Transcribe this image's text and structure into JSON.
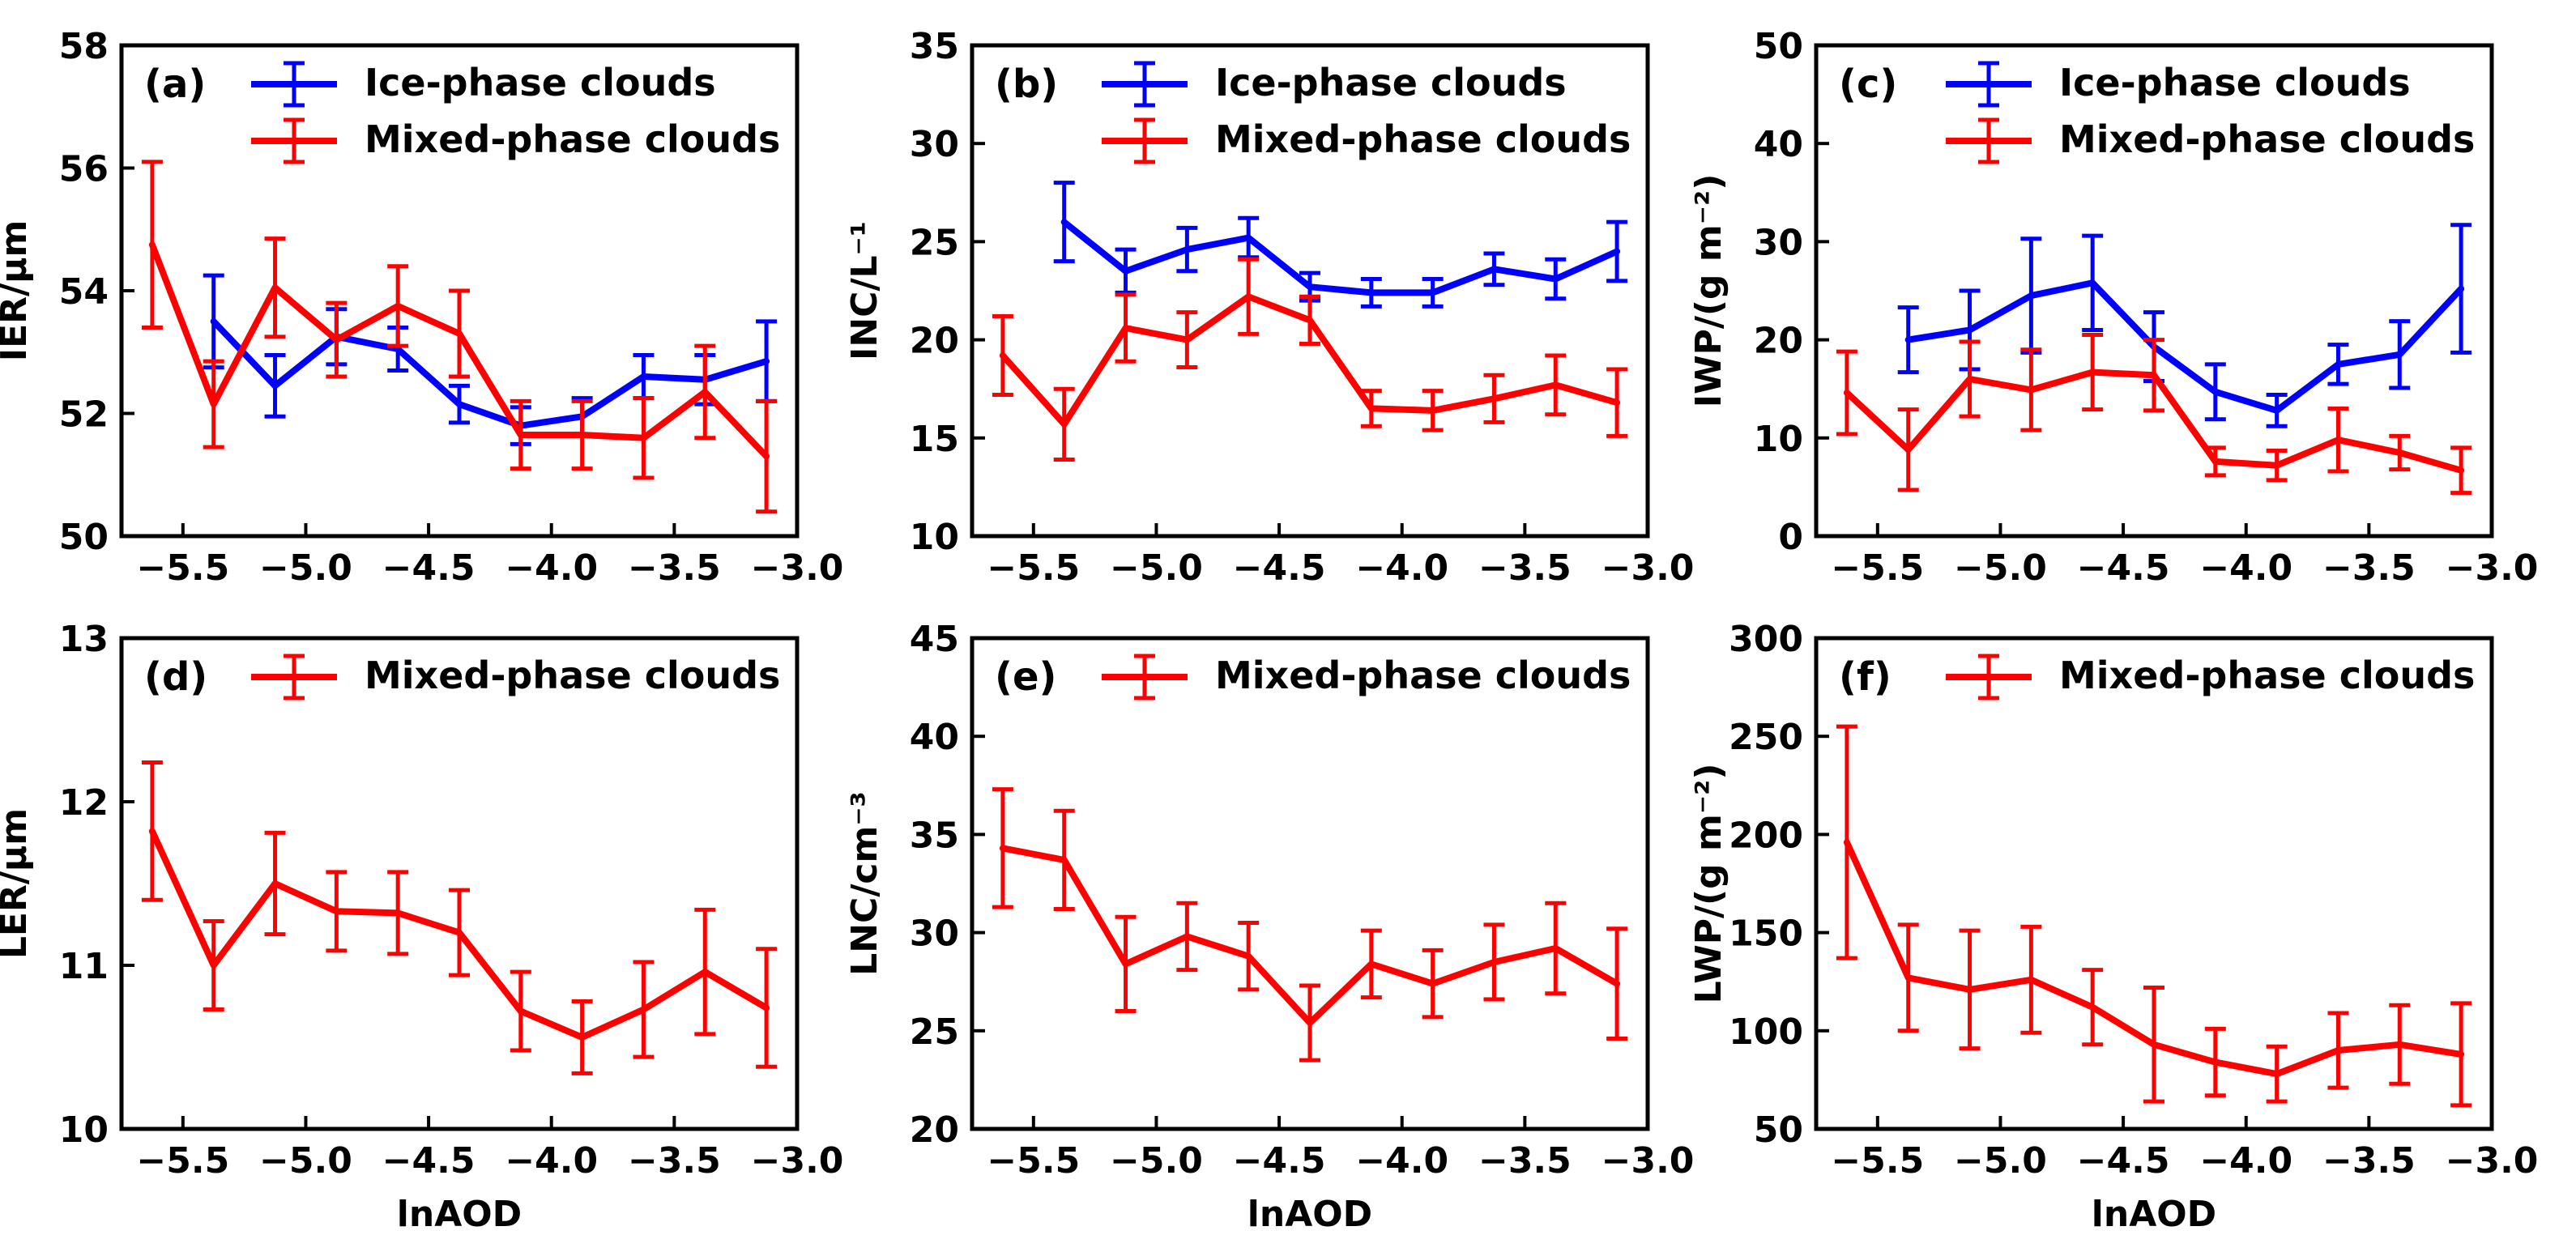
{
  "chart_data": [
    {
      "type": "line",
      "panel_label": "(a)",
      "xlabel": "",
      "ylabel": "IER/μm",
      "xlim": [
        -5.75,
        -3.0
      ],
      "ylim": [
        50,
        58
      ],
      "xticks": [
        -5.5,
        -5.0,
        -4.5,
        -4.0,
        -3.5,
        -3.0
      ],
      "xtick_labels": [
        "−5.5",
        "−5.0",
        "−4.5",
        "−4.0",
        "−3.5",
        "−3.0"
      ],
      "yticks": [
        50,
        52,
        54,
        56,
        58
      ],
      "ytick_labels": [
        "50",
        "52",
        "54",
        "56",
        "58"
      ],
      "legend_position": "top-left",
      "series": [
        {
          "name": "Ice-phase clouds",
          "color": "#0000ff",
          "x": [
            -5.375,
            -5.125,
            -4.875,
            -4.625,
            -4.375,
            -4.125,
            -3.875,
            -3.625,
            -3.375,
            -3.125
          ],
          "y": [
            53.5,
            52.45,
            53.25,
            53.05,
            52.15,
            51.8,
            51.95,
            52.6,
            52.55,
            52.85
          ],
          "err": [
            0.75,
            0.5,
            0.45,
            0.35,
            0.3,
            0.3,
            0.3,
            0.35,
            0.4,
            0.65
          ]
        },
        {
          "name": "Mixed-phase clouds",
          "color": "#ff0000",
          "x": [
            -5.625,
            -5.375,
            -5.125,
            -4.875,
            -4.625,
            -4.375,
            -4.125,
            -3.875,
            -3.625,
            -3.375,
            -3.125
          ],
          "y": [
            54.75,
            52.15,
            54.05,
            53.2,
            53.75,
            53.3,
            51.65,
            51.65,
            51.6,
            52.35,
            51.3
          ],
          "err": [
            1.35,
            0.7,
            0.8,
            0.6,
            0.65,
            0.7,
            0.55,
            0.55,
            0.65,
            0.75,
            0.9
          ]
        }
      ]
    },
    {
      "type": "line",
      "panel_label": "(b)",
      "xlabel": "",
      "ylabel": "INC/L⁻¹",
      "xlim": [
        -5.75,
        -3.0
      ],
      "ylim": [
        10,
        35
      ],
      "xticks": [
        -5.5,
        -5.0,
        -4.5,
        -4.0,
        -3.5,
        -3.0
      ],
      "xtick_labels": [
        "−5.5",
        "−5.0",
        "−4.5",
        "−4.0",
        "−3.5",
        "−3.0"
      ],
      "yticks": [
        10,
        15,
        20,
        25,
        30,
        35
      ],
      "ytick_labels": [
        "10",
        "15",
        "20",
        "25",
        "30",
        "35"
      ],
      "legend_position": "top-left",
      "series": [
        {
          "name": "Ice-phase clouds",
          "color": "#0000ff",
          "x": [
            -5.375,
            -5.125,
            -4.875,
            -4.625,
            -4.375,
            -4.125,
            -3.875,
            -3.625,
            -3.375,
            -3.125
          ],
          "y": [
            26.0,
            23.5,
            24.6,
            25.2,
            22.7,
            22.4,
            22.4,
            23.6,
            23.1,
            24.5
          ],
          "err": [
            2.0,
            1.1,
            1.1,
            1.0,
            0.7,
            0.7,
            0.7,
            0.8,
            1.0,
            1.5
          ]
        },
        {
          "name": "Mixed-phase clouds",
          "color": "#ff0000",
          "x": [
            -5.625,
            -5.375,
            -5.125,
            -4.875,
            -4.625,
            -4.375,
            -4.125,
            -3.875,
            -3.625,
            -3.375,
            -3.125
          ],
          "y": [
            19.2,
            15.7,
            20.6,
            20.0,
            22.2,
            21.0,
            16.5,
            16.4,
            17.0,
            17.7,
            16.8
          ],
          "err": [
            2.0,
            1.8,
            1.7,
            1.4,
            1.9,
            1.2,
            0.9,
            1.0,
            1.2,
            1.5,
            1.7
          ]
        }
      ]
    },
    {
      "type": "line",
      "panel_label": "(c)",
      "xlabel": "",
      "ylabel": "IWP/(g m⁻²)",
      "xlim": [
        -5.75,
        -3.0
      ],
      "ylim": [
        0,
        50
      ],
      "xticks": [
        -5.5,
        -5.0,
        -4.5,
        -4.0,
        -3.5,
        -3.0
      ],
      "xtick_labels": [
        "−5.5",
        "−5.0",
        "−4.5",
        "−4.0",
        "−3.5",
        "−3.0"
      ],
      "yticks": [
        0,
        10,
        20,
        30,
        40,
        50
      ],
      "ytick_labels": [
        "0",
        "10",
        "20",
        "30",
        "40",
        "50"
      ],
      "legend_position": "top-left",
      "series": [
        {
          "name": "Ice-phase clouds",
          "color": "#0000ff",
          "x": [
            -5.375,
            -5.125,
            -4.875,
            -4.625,
            -4.375,
            -4.125,
            -3.875,
            -3.625,
            -3.375,
            -3.125
          ],
          "y": [
            20.0,
            21.0,
            24.5,
            25.8,
            19.3,
            14.7,
            12.8,
            17.5,
            18.5,
            25.2
          ],
          "err": [
            3.3,
            4.0,
            5.8,
            4.8,
            3.5,
            2.8,
            1.6,
            2.0,
            3.4,
            6.5
          ]
        },
        {
          "name": "Mixed-phase clouds",
          "color": "#ff0000",
          "x": [
            -5.625,
            -5.375,
            -5.125,
            -4.875,
            -4.625,
            -4.375,
            -4.125,
            -3.875,
            -3.625,
            -3.375,
            -3.125
          ],
          "y": [
            14.6,
            8.8,
            16.0,
            14.9,
            16.7,
            16.4,
            7.6,
            7.2,
            9.8,
            8.5,
            6.7
          ],
          "err": [
            4.2,
            4.1,
            3.8,
            4.1,
            3.8,
            3.6,
            1.4,
            1.5,
            3.2,
            1.7,
            2.3
          ]
        }
      ]
    },
    {
      "type": "line",
      "panel_label": "(d)",
      "xlabel": "lnAOD",
      "ylabel": "LER/μm",
      "xlim": [
        -5.75,
        -3.0
      ],
      "ylim": [
        10,
        13
      ],
      "xticks": [
        -5.5,
        -5.0,
        -4.5,
        -4.0,
        -3.5,
        -3.0
      ],
      "xtick_labels": [
        "−5.5",
        "−5.0",
        "−4.5",
        "−4.0",
        "−3.5",
        "−3.0"
      ],
      "yticks": [
        10,
        11,
        12,
        13
      ],
      "ytick_labels": [
        "10",
        "11",
        "12",
        "13"
      ],
      "legend_position": "top-left",
      "series": [
        {
          "name": "Mixed-phase clouds",
          "color": "#ff0000",
          "x": [
            -5.625,
            -5.375,
            -5.125,
            -4.875,
            -4.625,
            -4.375,
            -4.125,
            -3.875,
            -3.625,
            -3.375,
            -3.125
          ],
          "y": [
            11.82,
            11.0,
            11.5,
            11.33,
            11.32,
            11.2,
            10.72,
            10.56,
            10.73,
            10.96,
            10.74
          ],
          "err": [
            0.42,
            0.27,
            0.31,
            0.24,
            0.25,
            0.26,
            0.24,
            0.22,
            0.29,
            0.38,
            0.36
          ]
        }
      ]
    },
    {
      "type": "line",
      "panel_label": "(e)",
      "xlabel": "lnAOD",
      "ylabel": "LNC/cm⁻³",
      "xlim": [
        -5.75,
        -3.0
      ],
      "ylim": [
        20,
        45
      ],
      "xticks": [
        -5.5,
        -5.0,
        -4.5,
        -4.0,
        -3.5,
        -3.0
      ],
      "xtick_labels": [
        "−5.5",
        "−5.0",
        "−4.5",
        "−4.0",
        "−3.5",
        "−3.0"
      ],
      "yticks": [
        20,
        25,
        30,
        35,
        40,
        45
      ],
      "ytick_labels": [
        "20",
        "25",
        "30",
        "35",
        "40",
        "45"
      ],
      "legend_position": "top-left",
      "series": [
        {
          "name": "Mixed-phase clouds",
          "color": "#ff0000",
          "x": [
            -5.625,
            -5.375,
            -5.125,
            -4.875,
            -4.625,
            -4.375,
            -4.125,
            -3.875,
            -3.625,
            -3.375,
            -3.125
          ],
          "y": [
            34.3,
            33.7,
            28.4,
            29.8,
            28.8,
            25.4,
            28.4,
            27.4,
            28.5,
            29.2,
            27.4
          ],
          "err": [
            3.0,
            2.5,
            2.4,
            1.7,
            1.7,
            1.9,
            1.7,
            1.7,
            1.9,
            2.3,
            2.8
          ]
        }
      ]
    },
    {
      "type": "line",
      "panel_label": "(f)",
      "xlabel": "lnAOD",
      "ylabel": "LWP/(g m⁻²)",
      "xlim": [
        -5.75,
        -3.0
      ],
      "ylim": [
        50,
        300
      ],
      "xticks": [
        -5.5,
        -5.0,
        -4.5,
        -4.0,
        -3.5,
        -3.0
      ],
      "xtick_labels": [
        "−5.5",
        "−5.0",
        "−4.5",
        "−4.0",
        "−3.5",
        "−3.0"
      ],
      "yticks": [
        50,
        100,
        150,
        200,
        250,
        300
      ],
      "ytick_labels": [
        "50",
        "100",
        "150",
        "200",
        "250",
        "300"
      ],
      "legend_position": "top-left",
      "series": [
        {
          "name": "Mixed-phase clouds",
          "color": "#ff0000",
          "x": [
            -5.625,
            -5.375,
            -5.125,
            -4.875,
            -4.625,
            -4.375,
            -4.125,
            -3.875,
            -3.625,
            -3.375,
            -3.125
          ],
          "y": [
            196,
            127,
            121,
            126,
            112,
            93,
            84,
            78,
            90,
            93,
            88
          ],
          "err": [
            59,
            27,
            30,
            27,
            19,
            29,
            17,
            14,
            19,
            20,
            26
          ]
        }
      ]
    }
  ]
}
